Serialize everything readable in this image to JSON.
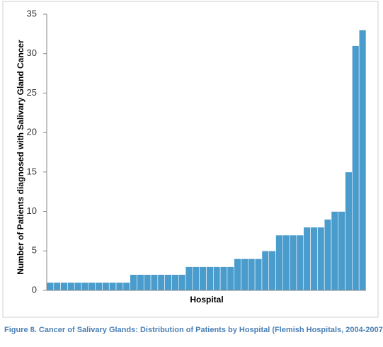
{
  "chart_data": {
    "type": "bar",
    "x_label": "Hospital",
    "y_label": "Number of Patients diagnosed with Salivary Gland Cancer",
    "caption": "Figure 8. Cancer of Salivary Glands: Distribution of Patients by Hospital (Flemish Hospitals, 2004-2007)",
    "categories": [
      null,
      null,
      null,
      null,
      null,
      null,
      null,
      null,
      null,
      null,
      null,
      null,
      null,
      null,
      null,
      null,
      null,
      null,
      null,
      null,
      null,
      null,
      null,
      null,
      null,
      null,
      null,
      null,
      null,
      null,
      null,
      null,
      null,
      null,
      null,
      null,
      null,
      null,
      null,
      null,
      null,
      null,
      null,
      null,
      null,
      null
    ],
    "values": [
      1,
      1,
      1,
      1,
      1,
      1,
      1,
      1,
      1,
      1,
      1,
      1,
      2,
      2,
      2,
      2,
      2,
      2,
      2,
      2,
      3,
      3,
      3,
      3,
      3,
      3,
      3,
      4,
      4,
      4,
      4,
      5,
      5,
      7,
      7,
      7,
      7,
      8,
      8,
      8,
      9,
      10,
      10,
      15,
      31,
      33
    ],
    "color": "#4a9ccc",
    "ylim": [
      0,
      35
    ],
    "yticks": [
      0,
      5,
      10,
      15,
      20,
      25,
      30,
      35
    ],
    "grid": false
  }
}
